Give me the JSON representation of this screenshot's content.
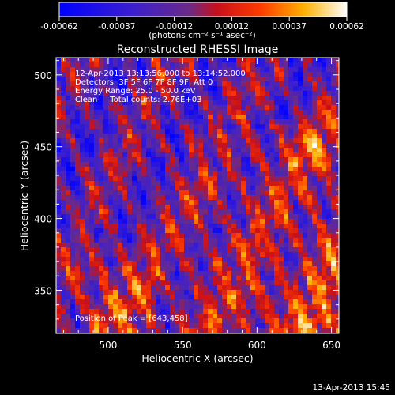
{
  "chart_data": {
    "type": "heatmap",
    "title": "Reconstructed RHESSI Image",
    "xlabel": "Heliocentric X (arcsec)",
    "ylabel": "Heliocentric Y (arcsec)",
    "xlim": [
      465,
      655
    ],
    "ylim": [
      320,
      512
    ],
    "x_ticks": [
      500,
      550,
      600,
      650
    ],
    "y_ticks": [
      350,
      400,
      450,
      500
    ],
    "colorbar": {
      "ticks": [
        "-0.00062",
        "-0.00037",
        "-0.00012",
        "0.00012",
        "0.00037",
        "0.00062"
      ],
      "range": [
        -0.00062,
        0.00062
      ],
      "unit": "(photons cm⁻² s⁻¹ asec⁻²)",
      "colors": [
        "#0000ff",
        "#4b2bc9",
        "#7a2a8a",
        "#d01010",
        "#ff6a00",
        "#ffd21a",
        "#ffffff"
      ]
    },
    "annotations": [
      "12-Apr-2013 13:13:56.000 to 13:14:52.000",
      "Detectors: 3F 5F 6F 7F 8F 9F, Att 0",
      "Energy Range: 25.0 - 50.0 keV",
      "Clean     Total counts: 2.76E+03",
      "Position of Peak = [643,458]"
    ],
    "peak": {
      "x": 643,
      "y": 458
    },
    "grid": false
  },
  "footer": {
    "timestamp": "13-Apr-2013 15:45"
  }
}
